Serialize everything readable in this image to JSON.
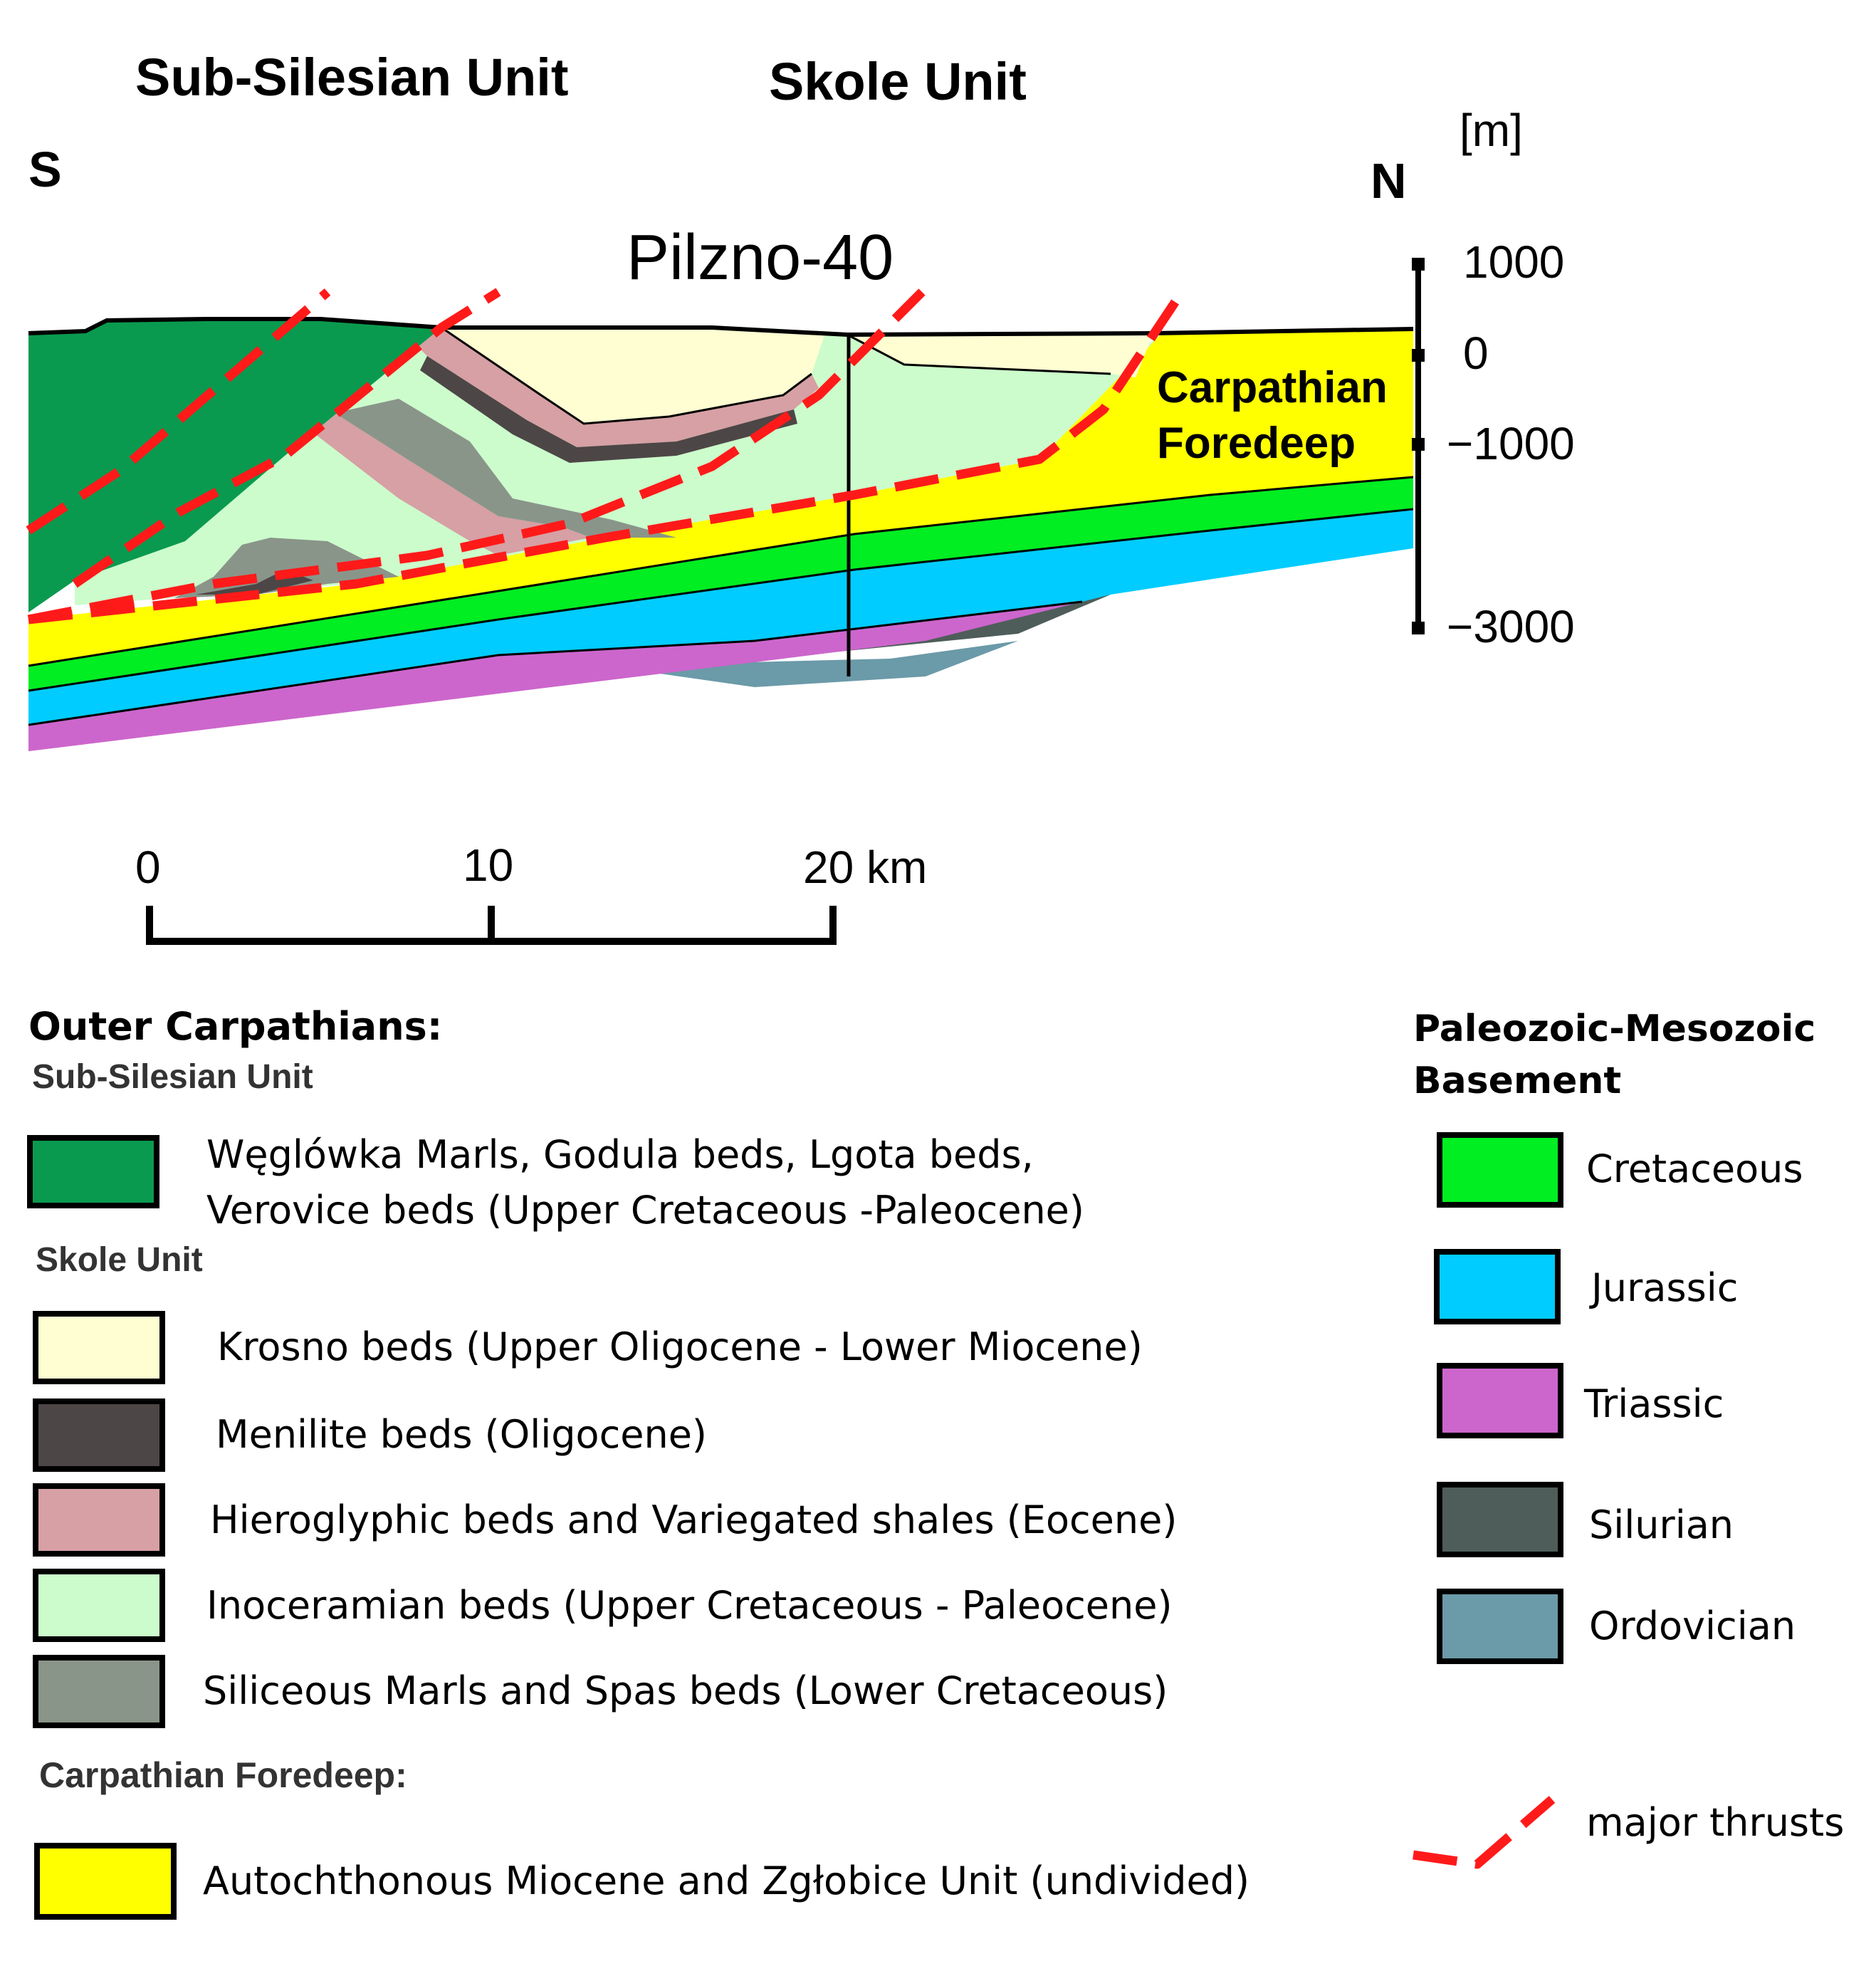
{
  "section": {
    "unit_labels": {
      "sub_silesian": "Sub-Silesian Unit",
      "skole": "Skole Unit"
    },
    "orientation": {
      "south": "S",
      "north": "N"
    },
    "well": "Pilzno-40",
    "foredeep_label": [
      "Carpathian",
      "Foredeep"
    ],
    "depth_axis": {
      "unit": "[m]",
      "ticks": [
        "1000",
        "0",
        "−1000",
        "−3000"
      ]
    },
    "scale_bar": {
      "ticks": [
        "0",
        "10",
        "20 km"
      ]
    }
  },
  "colors": {
    "weglowka": "#0a9a4f",
    "krosno": "#fefed2",
    "menilite": "#4d4646",
    "hieroglyphic": "#d6a0a4",
    "inoceramian": "#ccfccc",
    "siliceous": "#8a958a",
    "foredeep": "#ffff00",
    "cretaceous": "#00ee22",
    "jurassic": "#00ccff",
    "triassic": "#cc66cc",
    "silurian": "#4e5d5a",
    "ordovician": "#6b9aa8",
    "thrust": "#ff1a1a"
  },
  "legend": {
    "outer_title": "Outer Carpathians:",
    "sub_silesian_title": "Sub-Silesian Unit",
    "sub_silesian_items": [
      {
        "lines": [
          "Węglówka Marls, Godula beds, Lgota beds,",
          "Verovice beds (Upper Cretaceous -Paleocene)"
        ]
      }
    ],
    "skole_title": "Skole Unit",
    "skole_items": [
      {
        "label": "Krosno beds (Upper Oligocene - Lower Miocene)"
      },
      {
        "label": "Menilite beds (Oligocene)"
      },
      {
        "label": "Hieroglyphic beds and Variegated shales (Eocene)"
      },
      {
        "label": "Inoceramian beds (Upper Cretaceous - Paleocene)"
      },
      {
        "label": "Siliceous Marls and Spas beds (Lower Cretaceous)"
      }
    ],
    "foredeep_title": "Carpathian Foredeep:",
    "foredeep_item": {
      "label": "Autochthonous Miocene and Zgłobice Unit (undivided)"
    },
    "basement_title": [
      "Paleozoic-Mesozoic",
      "Basement"
    ],
    "basement_items": [
      {
        "label": "Cretaceous"
      },
      {
        "label": "Jurassic"
      },
      {
        "label": "Triassic"
      },
      {
        "label": "Silurian"
      },
      {
        "label": "Ordovician"
      }
    ],
    "thrust_label": "major thrusts"
  }
}
